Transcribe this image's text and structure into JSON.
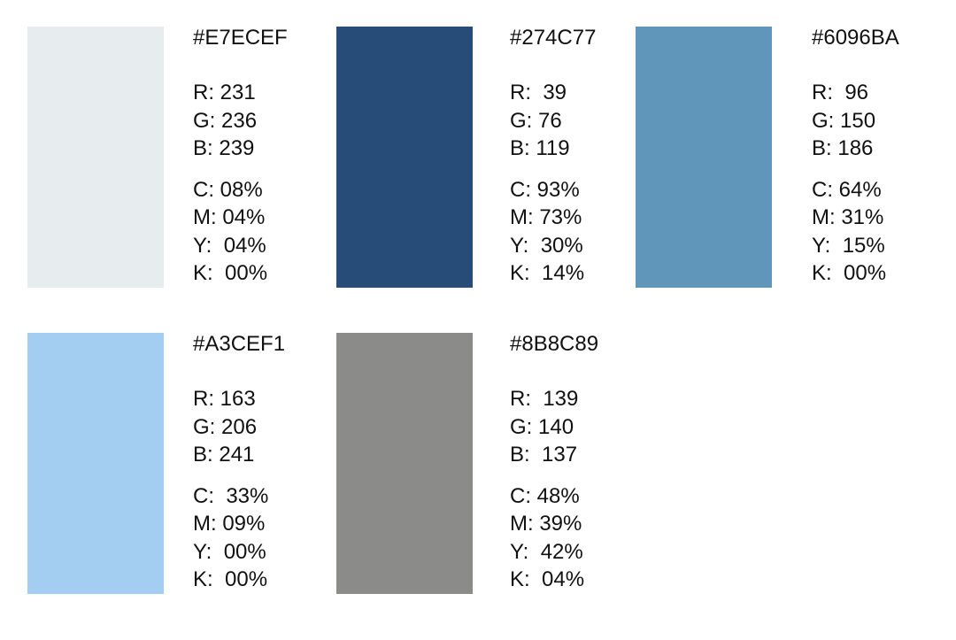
{
  "swatches": [
    {
      "hex": "#E7ECEF",
      "rgb": [
        "R: 231",
        "G: 236",
        "B: 239"
      ],
      "cmyk": [
        "C: 08%",
        "M: 04%",
        "Y:  04%",
        "K:  00%"
      ]
    },
    {
      "hex": "#274C77",
      "rgb": [
        "R:  39",
        "G: 76",
        "B: 119"
      ],
      "cmyk": [
        "C: 93%",
        "M: 73%",
        "Y:  30%",
        "K:  14%"
      ]
    },
    {
      "hex": "#6096BA",
      "rgb": [
        "R:  96",
        "G: 150",
        "B: 186"
      ],
      "cmyk": [
        "C: 64%",
        "M: 31%",
        "Y:  15%",
        "K:  00%"
      ]
    },
    {
      "hex": "#A3CEF1",
      "rgb": [
        "R: 163",
        "G: 206",
        "B: 241"
      ],
      "cmyk": [
        "C:  33%",
        "M: 09%",
        "Y:  00%",
        "K:  00%"
      ]
    },
    {
      "hex": "#8B8C89",
      "rgb": [
        "R:  139",
        "G: 140",
        "B:  137"
      ],
      "cmyk": [
        "C: 48%",
        "M: 39%",
        "Y:  42%",
        "K:  04%"
      ]
    }
  ]
}
